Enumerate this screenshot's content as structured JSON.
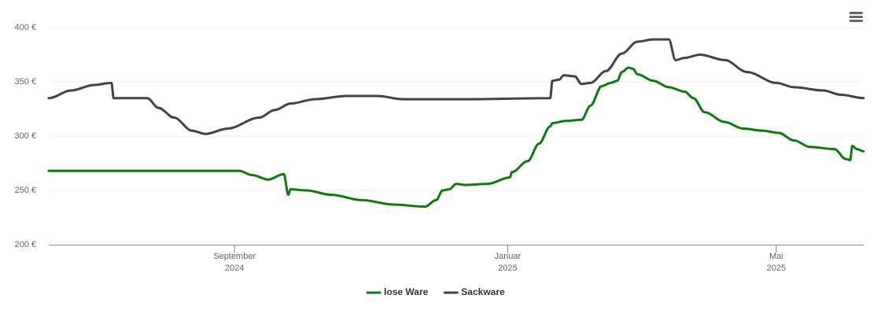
{
  "chart_data": {
    "type": "line",
    "xlim": [
      "2024-06-10",
      "2025-06-09"
    ],
    "xticks": [
      {
        "value": "2024-09-01",
        "label": [
          "September",
          "2024"
        ]
      },
      {
        "value": "2025-01-01",
        "label": [
          "Januar",
          "2025"
        ]
      },
      {
        "value": "2025-05-01",
        "label": [
          "Mai",
          "2025"
        ]
      }
    ],
    "ylim": [
      200,
      400
    ],
    "yticks": [
      {
        "value": 200,
        "label": "200 €"
      },
      {
        "value": 250,
        "label": "250 €"
      },
      {
        "value": 300,
        "label": "300 €"
      },
      {
        "value": 350,
        "label": "350 €"
      },
      {
        "value": 400,
        "label": "400 €"
      }
    ],
    "grid": true,
    "legend": "bottom",
    "series": [
      {
        "name": "lose Ware",
        "color": "#0e7a0d",
        "x": [
          "2024-06-10",
          "2024-09-03",
          "2024-09-09",
          "2024-09-16",
          "2024-09-23",
          "2024-09-25",
          "2024-09-26",
          "2024-10-03",
          "2024-10-14",
          "2024-10-28",
          "2024-11-11",
          "2024-11-25",
          "2024-11-30",
          "2024-12-03",
          "2024-12-06",
          "2024-12-09",
          "2024-12-13",
          "2024-12-23",
          "2025-01-02",
          "2025-01-03",
          "2025-01-10",
          "2025-01-15",
          "2025-01-20",
          "2025-01-21",
          "2025-01-27",
          "2025-02-03",
          "2025-02-07",
          "2025-02-12",
          "2025-02-16",
          "2025-02-19",
          "2025-02-21",
          "2025-02-24",
          "2025-02-26",
          "2025-02-28",
          "2025-03-07",
          "2025-03-14",
          "2025-03-21",
          "2025-03-25",
          "2025-03-30",
          "2025-04-08",
          "2025-04-16",
          "2025-04-25",
          "2025-05-02",
          "2025-05-09",
          "2025-05-16",
          "2025-05-27",
          "2025-06-01",
          "2025-06-03",
          "2025-06-04",
          "2025-06-06",
          "2025-06-09"
        ],
        "values": [
          268,
          268,
          264,
          260,
          265,
          246,
          251,
          250,
          246,
          241,
          237,
          235,
          241,
          250,
          251,
          256,
          255,
          256,
          262,
          267,
          277,
          293,
          309,
          312,
          314,
          315,
          328,
          346,
          349,
          351,
          359,
          363,
          362,
          357,
          351,
          345,
          341,
          335,
          322,
          313,
          307,
          305,
          303,
          296,
          290,
          288,
          279,
          278,
          291,
          288,
          286
        ]
      },
      {
        "name": "Sackware",
        "color": "#434348",
        "x": [
          "2024-06-10",
          "2024-06-20",
          "2024-06-30",
          "2024-07-08",
          "2024-07-09",
          "2024-07-24",
          "2024-07-29",
          "2024-08-05",
          "2024-08-13",
          "2024-08-19",
          "2024-08-29",
          "2024-09-12",
          "2024-09-19",
          "2024-09-26",
          "2024-10-07",
          "2024-10-21",
          "2024-11-04",
          "2024-11-15",
          "2024-12-16",
          "2025-01-20",
          "2025-01-21",
          "2025-01-24",
          "2025-01-26",
          "2025-01-31",
          "2025-02-03",
          "2025-02-07",
          "2025-02-14",
          "2025-02-21",
          "2025-02-28",
          "2025-03-07",
          "2025-03-14",
          "2025-03-17",
          "2025-03-21",
          "2025-03-28",
          "2025-04-08",
          "2025-04-18",
          "2025-05-01",
          "2025-05-09",
          "2025-05-22",
          "2025-05-30",
          "2025-06-09"
        ],
        "values": [
          335,
          342,
          347,
          349,
          335,
          335,
          326,
          317,
          305,
          302,
          307,
          317,
          324,
          330,
          334,
          337,
          337,
          334,
          334,
          335,
          351,
          352,
          356,
          355,
          348,
          349,
          360,
          376,
          387,
          389,
          389,
          370,
          372,
          375,
          370,
          359,
          349,
          345,
          342,
          338,
          335
        ]
      }
    ]
  }
}
